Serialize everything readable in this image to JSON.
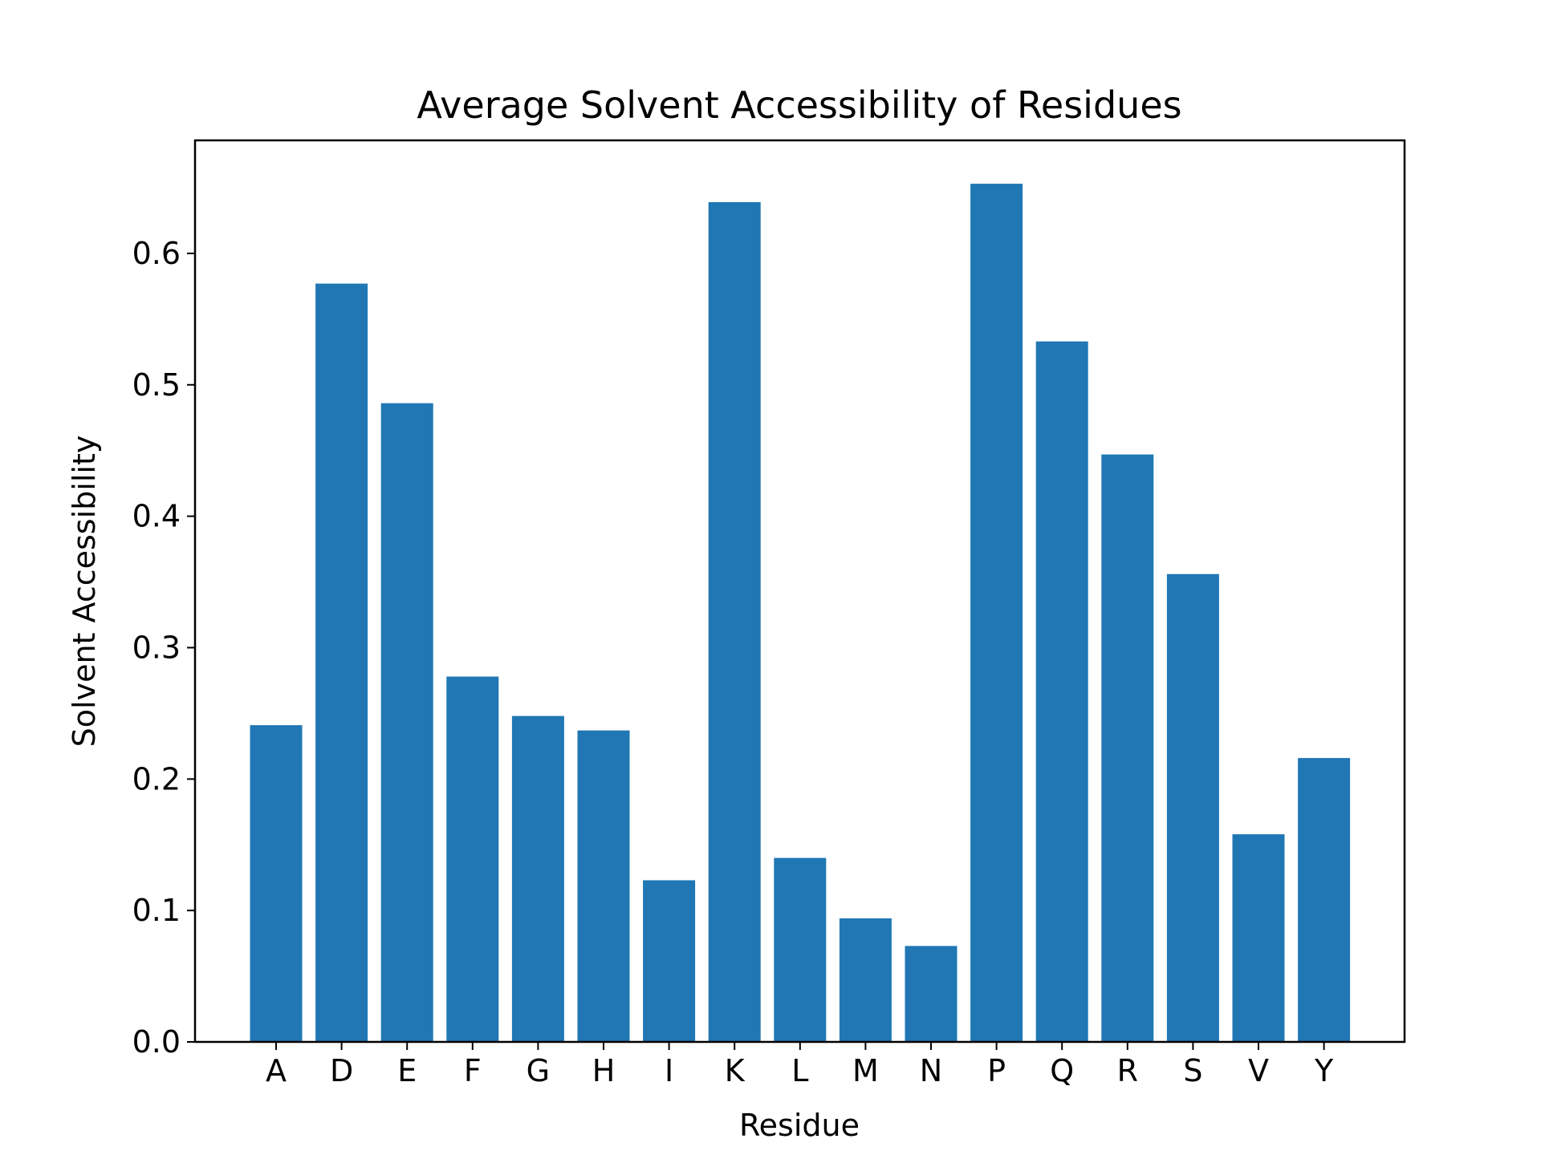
{
  "chart_data": {
    "type": "bar",
    "title": "Average Solvent Accessibility of Residues",
    "xlabel": "Residue",
    "ylabel": "Solvent Accessibility",
    "categories": [
      "A",
      "D",
      "E",
      "F",
      "G",
      "H",
      "I",
      "K",
      "L",
      "M",
      "N",
      "P",
      "Q",
      "R",
      "S",
      "V",
      "Y"
    ],
    "values": [
      0.241,
      0.577,
      0.486,
      0.278,
      0.248,
      0.237,
      0.123,
      0.639,
      0.14,
      0.094,
      0.073,
      0.653,
      0.533,
      0.447,
      0.356,
      0.158,
      0.216
    ],
    "yticks": [
      "0.0",
      "0.1",
      "0.2",
      "0.3",
      "0.4",
      "0.5",
      "0.6"
    ],
    "ylim": [
      0,
      0.686
    ],
    "bar_color": "#2077b4",
    "grid": false,
    "legend": "none"
  }
}
